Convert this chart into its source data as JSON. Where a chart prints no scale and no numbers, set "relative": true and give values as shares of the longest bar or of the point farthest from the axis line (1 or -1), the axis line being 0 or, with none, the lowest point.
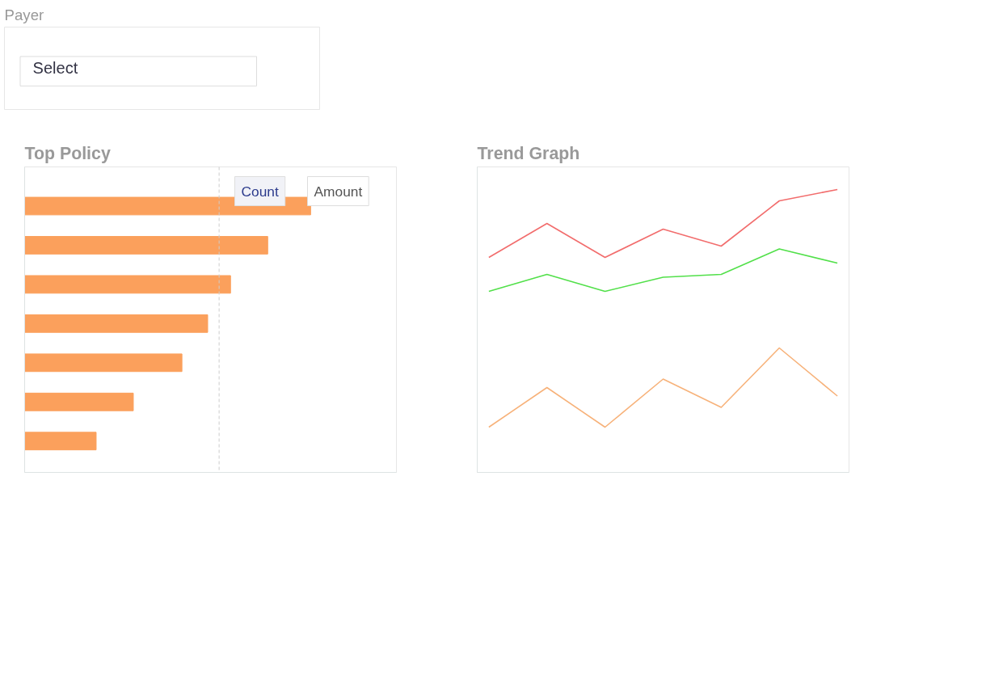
{
  "chart_data": [
    {
      "type": "other",
      "title": "Payer",
      "annotations": [
        "Select"
      ]
    },
    {
      "type": "bar",
      "title": "Top Policy",
      "orientation": "horizontal",
      "relative": true,
      "tick_labels": false,
      "grid": false,
      "categories": [
        null,
        null,
        null,
        null,
        null,
        null,
        null
      ],
      "values": [
        1.0,
        0.85,
        0.72,
        0.64,
        0.55,
        0.38,
        0.25
      ],
      "color": "#fba05c",
      "ref_lines": [
        {
          "axis": "x",
          "value": 0.68,
          "line_style": "dashed",
          "color": "#cccccc"
        }
      ],
      "annotations": [
        "Count",
        "Amount"
      ]
    },
    {
      "type": "line",
      "title": "Trend Graph",
      "relative": true,
      "tick_labels": false,
      "grid": false,
      "categories": [
        null,
        null,
        null,
        null,
        null,
        null,
        null
      ],
      "series": [
        {
          "color": "#f26d6d",
          "values": [
            0.76,
            0.88,
            0.76,
            0.86,
            0.8,
            0.96,
            1.0
          ]
        },
        {
          "color": "#52e04a",
          "values": [
            0.64,
            0.7,
            0.64,
            0.69,
            0.7,
            0.79,
            0.74
          ]
        },
        {
          "color": "#f7b27a",
          "values": [
            0.16,
            0.3,
            0.16,
            0.33,
            0.23,
            0.44,
            0.27
          ]
        }
      ]
    }
  ]
}
